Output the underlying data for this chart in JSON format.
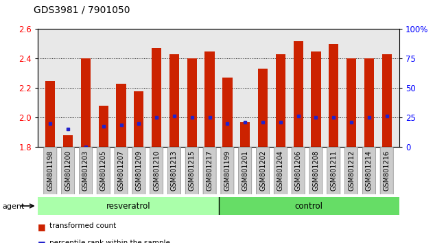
{
  "title": "GDS3981 / 7901050",
  "samples": [
    "GSM801198",
    "GSM801200",
    "GSM801203",
    "GSM801205",
    "GSM801207",
    "GSM801209",
    "GSM801210",
    "GSM801213",
    "GSM801215",
    "GSM801217",
    "GSM801199",
    "GSM801201",
    "GSM801202",
    "GSM801204",
    "GSM801206",
    "GSM801208",
    "GSM801211",
    "GSM801212",
    "GSM801214",
    "GSM801216"
  ],
  "red_values": [
    2.25,
    1.88,
    2.4,
    2.08,
    2.23,
    2.18,
    2.47,
    2.43,
    2.4,
    2.45,
    2.27,
    1.97,
    2.33,
    2.43,
    2.52,
    2.45,
    2.5,
    2.4,
    2.4,
    2.43
  ],
  "blue_values": [
    1.96,
    1.92,
    1.8,
    1.94,
    1.95,
    1.96,
    2.0,
    2.01,
    2.0,
    2.0,
    1.96,
    1.97,
    1.97,
    1.97,
    2.01,
    2.0,
    2.0,
    1.97,
    2.0,
    2.01
  ],
  "resveratrol_count": 10,
  "control_count": 10,
  "ylim": [
    1.8,
    2.6
  ],
  "right_ylim": [
    0,
    100
  ],
  "right_ticks": [
    0,
    25,
    50,
    75,
    100
  ],
  "right_tick_labels": [
    "0",
    "25",
    "50",
    "75",
    "100%"
  ],
  "left_ticks": [
    1.8,
    2.0,
    2.2,
    2.4,
    2.6
  ],
  "grid_lines": [
    2.0,
    2.2,
    2.4
  ],
  "bar_color": "#cc2200",
  "dot_color": "#2222cc",
  "resveratrol_color": "#aaffaa",
  "control_color": "#66dd66",
  "agent_label": "agent",
  "resveratrol_label": "resveratrol",
  "control_label": "control",
  "legend1": "transformed count",
  "legend2": "percentile rank within the sample",
  "bar_width": 0.55,
  "title_fontsize": 10,
  "tick_fontsize": 7,
  "label_fontsize": 8
}
